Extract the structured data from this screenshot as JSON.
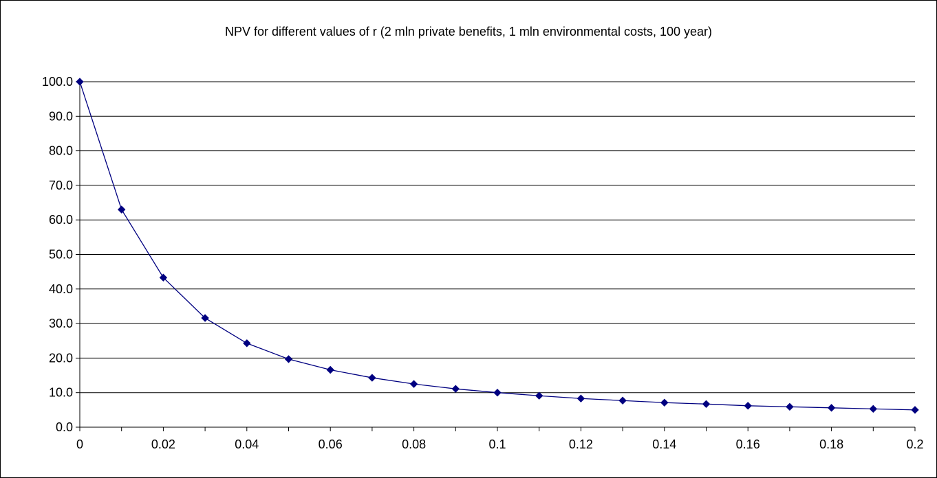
{
  "chart_data": {
    "type": "line",
    "title": "NPV for different values of r (2 mln private benefits, 1 mln environmental costs, 100 year)",
    "xlabel": "",
    "ylabel": "",
    "xlim": [
      0,
      0.2
    ],
    "ylim": [
      0,
      100
    ],
    "grid": "horizontal",
    "legend": "none",
    "x_ticks": [
      "0",
      "0.02",
      "0.04",
      "0.06",
      "0.08",
      "0.1",
      "0.12",
      "0.14",
      "0.16",
      "0.18",
      "0.2"
    ],
    "y_ticks": [
      "0.0",
      "10.0",
      "20.0",
      "30.0",
      "40.0",
      "50.0",
      "60.0",
      "70.0",
      "80.0",
      "90.0",
      "100.0"
    ],
    "series": [
      {
        "color": "#000080",
        "x": [
          0,
          0.01,
          0.02,
          0.03,
          0.04,
          0.05,
          0.06,
          0.07,
          0.08,
          0.09,
          0.1,
          0.11,
          0.12,
          0.13,
          0.14,
          0.15,
          0.16,
          0.17,
          0.18,
          0.19,
          0.2
        ],
        "y": [
          100.0,
          63.0,
          43.3,
          31.6,
          24.3,
          19.7,
          16.6,
          14.3,
          12.5,
          11.1,
          10.0,
          9.1,
          8.3,
          7.7,
          7.1,
          6.7,
          6.2,
          5.9,
          5.6,
          5.3,
          5.0
        ]
      }
    ]
  }
}
